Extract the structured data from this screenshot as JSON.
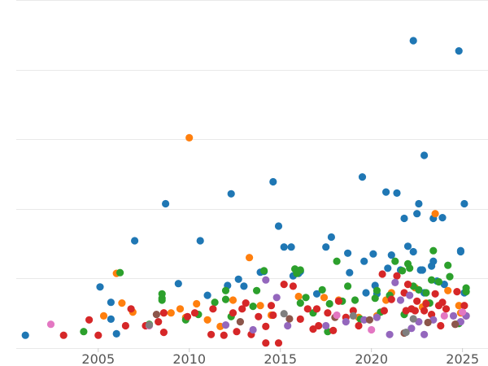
{
  "chart_data": {
    "type": "scatter",
    "title": "",
    "xlabel": "",
    "ylabel": "",
    "xlim": [
      2000.5,
      2026.4
    ],
    "ylim": [
      0,
      95
    ],
    "grid": "horizontal",
    "x_ticks": [
      "2005",
      "2010",
      "2015",
      "2020",
      "2025"
    ],
    "x_tick_values": [
      2005,
      2010,
      2015,
      2020,
      2025
    ],
    "y_grid_values": [
      0,
      19,
      38,
      57,
      76,
      95
    ],
    "series": [
      {
        "color": "#1f77b4",
        "points": [
          [
            2001.0,
            3.5
          ],
          [
            2005.1,
            16.7
          ],
          [
            2005.7,
            12.5
          ],
          [
            2005.7,
            7.9
          ],
          [
            2006.0,
            3.9
          ],
          [
            2007.0,
            29.3
          ],
          [
            2008.7,
            39.4
          ],
          [
            2009.4,
            17.6
          ],
          [
            2010.6,
            29.3
          ],
          [
            2011.0,
            14.4
          ],
          [
            2012.1,
            17.1
          ],
          [
            2012.3,
            42.1
          ],
          [
            2012.7,
            18.8
          ],
          [
            2013.0,
            16.9
          ],
          [
            2013.9,
            20.7
          ],
          [
            2014.1,
            20.9
          ],
          [
            2014.6,
            45.4
          ],
          [
            2014.9,
            33.3
          ],
          [
            2015.2,
            27.6
          ],
          [
            2015.6,
            27.6
          ],
          [
            2015.7,
            19.7
          ],
          [
            2016.0,
            20.4
          ],
          [
            2016.1,
            20.9
          ],
          [
            2017.0,
            14.8
          ],
          [
            2017.5,
            27.6
          ],
          [
            2017.8,
            30.3
          ],
          [
            2018.7,
            25.9
          ],
          [
            2018.8,
            20.6
          ],
          [
            2019.5,
            46.7
          ],
          [
            2019.6,
            23.7
          ],
          [
            2019.7,
            15.1
          ],
          [
            2020.1,
            25.7
          ],
          [
            2020.2,
            17.1
          ],
          [
            2020.3,
            14.8
          ],
          [
            2020.8,
            42.6
          ],
          [
            2020.9,
            21.8
          ],
          [
            2021.1,
            25.4
          ],
          [
            2021.4,
            42.3
          ],
          [
            2021.6,
            21.3
          ],
          [
            2021.8,
            35.4
          ],
          [
            2022.0,
            27.8
          ],
          [
            2022.3,
            26.3
          ],
          [
            2022.3,
            83.9
          ],
          [
            2022.5,
            36.7
          ],
          [
            2022.6,
            39.4
          ],
          [
            2022.7,
            21.3
          ],
          [
            2022.8,
            21.3
          ],
          [
            2022.9,
            15.1
          ],
          [
            2022.9,
            52.6
          ],
          [
            2023.3,
            22.4
          ],
          [
            2023.4,
            35.4
          ],
          [
            2023.4,
            23.7
          ],
          [
            2023.9,
            35.6
          ],
          [
            2024.8,
            81.1
          ],
          [
            2024.9,
            26.3
          ],
          [
            2024.9,
            26.6
          ],
          [
            2025.1,
            39.4
          ],
          [
            2025.1,
            15.1
          ],
          [
            2024.0,
            17.4
          ],
          [
            2023.6,
            18.3
          ]
        ]
      },
      {
        "color": "#ff7f0e",
        "points": [
          [
            2005.3,
            8.8
          ],
          [
            2006.0,
            20.4
          ],
          [
            2006.3,
            12.3
          ],
          [
            2006.9,
            9.8
          ],
          [
            2008.6,
            9.6
          ],
          [
            2009.0,
            9.6
          ],
          [
            2009.5,
            10.7
          ],
          [
            2009.8,
            8.4
          ],
          [
            2010.0,
            57.4
          ],
          [
            2010.4,
            12.1
          ],
          [
            2011.0,
            7.7
          ],
          [
            2011.7,
            5.9
          ],
          [
            2012.4,
            13.1
          ],
          [
            2013.3,
            24.7
          ],
          [
            2013.9,
            11.6
          ],
          [
            2014.5,
            9.0
          ],
          [
            2016.0,
            14.1
          ],
          [
            2017.4,
            13.8
          ],
          [
            2018.2,
            13.1
          ],
          [
            2019.3,
            8.4
          ],
          [
            2020.3,
            8.8
          ],
          [
            2020.8,
            13.1
          ],
          [
            2021.1,
            15.1
          ],
          [
            2022.4,
            16.5
          ],
          [
            2023.0,
            12.3
          ],
          [
            2023.5,
            36.7
          ],
          [
            2024.2,
            15.7
          ],
          [
            2024.8,
            11.6
          ],
          [
            2024.9,
            9.6
          ],
          [
            2022.8,
            11.2
          ]
        ]
      },
      {
        "color": "#2ca02c",
        "points": [
          [
            2004.2,
            4.5
          ],
          [
            2006.2,
            20.6
          ],
          [
            2007.8,
            6.5
          ],
          [
            2008.5,
            14.8
          ],
          [
            2008.5,
            13.6
          ],
          [
            2008.5,
            13.1
          ],
          [
            2009.8,
            7.7
          ],
          [
            2010.5,
            9.2
          ],
          [
            2011.4,
            12.5
          ],
          [
            2012.0,
            13.3
          ],
          [
            2012.0,
            15.7
          ],
          [
            2012.3,
            8.6
          ],
          [
            2013.5,
            11.4
          ],
          [
            2013.7,
            15.7
          ],
          [
            2014.1,
            21.1
          ],
          [
            2015.8,
            21.6
          ],
          [
            2015.9,
            20.4
          ],
          [
            2016.1,
            21.3
          ],
          [
            2016.1,
            12.3
          ],
          [
            2016.4,
            13.8
          ],
          [
            2016.8,
            9.6
          ],
          [
            2017.3,
            15.9
          ],
          [
            2017.7,
            12.1
          ],
          [
            2018.1,
            23.7
          ],
          [
            2018.4,
            12.8
          ],
          [
            2018.7,
            16.9
          ],
          [
            2019.1,
            13.1
          ],
          [
            2019.4,
            7.9
          ],
          [
            2020.2,
            13.6
          ],
          [
            2020.3,
            15.7
          ],
          [
            2020.5,
            9.8
          ],
          [
            2021.0,
            14.4
          ],
          [
            2021.3,
            23.7
          ],
          [
            2021.7,
            21.1
          ],
          [
            2021.8,
            9.2
          ],
          [
            2022.0,
            23.0
          ],
          [
            2022.1,
            21.8
          ],
          [
            2022.3,
            16.9
          ],
          [
            2022.6,
            15.9
          ],
          [
            2023.0,
            15.1
          ],
          [
            2023.2,
            12.3
          ],
          [
            2023.3,
            18.6
          ],
          [
            2023.4,
            26.6
          ],
          [
            2023.7,
            18.1
          ],
          [
            2024.2,
            22.6
          ],
          [
            2024.3,
            19.5
          ],
          [
            2024.8,
            6.7
          ],
          [
            2025.2,
            16.4
          ],
          [
            2025.2,
            15.4
          ],
          [
            2017.6,
            4.5
          ]
        ]
      },
      {
        "color": "#d62728",
        "points": [
          [
            2003.1,
            3.5
          ],
          [
            2004.5,
            7.7
          ],
          [
            2005.0,
            3.5
          ],
          [
            2006.5,
            6.1
          ],
          [
            2006.8,
            10.7
          ],
          [
            2007.6,
            6.1
          ],
          [
            2008.3,
            7.2
          ],
          [
            2008.6,
            9.6
          ],
          [
            2008.6,
            4.3
          ],
          [
            2009.9,
            8.6
          ],
          [
            2010.3,
            9.6
          ],
          [
            2011.2,
            3.7
          ],
          [
            2011.3,
            10.7
          ],
          [
            2011.9,
            3.5
          ],
          [
            2012.4,
            9.6
          ],
          [
            2012.6,
            4.5
          ],
          [
            2012.9,
            10.7
          ],
          [
            2013.1,
            12.3
          ],
          [
            2013.4,
            3.7
          ],
          [
            2013.8,
            8.6
          ],
          [
            2014.2,
            5.9
          ],
          [
            2014.5,
            11.6
          ],
          [
            2014.6,
            9.0
          ],
          [
            2014.9,
            1.4
          ],
          [
            2015.2,
            17.4
          ],
          [
            2015.7,
            16.9
          ],
          [
            2016.1,
            7.9
          ],
          [
            2016.5,
            10.7
          ],
          [
            2016.8,
            5.2
          ],
          [
            2017.0,
            10.7
          ],
          [
            2017.1,
            6.1
          ],
          [
            2017.6,
            9.6
          ],
          [
            2017.9,
            4.8
          ],
          [
            2018.2,
            12.8
          ],
          [
            2018.6,
            8.4
          ],
          [
            2019.0,
            10.2
          ],
          [
            2019.3,
            6.1
          ],
          [
            2020.6,
            20.2
          ],
          [
            2020.7,
            10.2
          ],
          [
            2021.1,
            13.3
          ],
          [
            2021.4,
            19.7
          ],
          [
            2021.8,
            15.1
          ],
          [
            2021.9,
            10.2
          ],
          [
            2022.0,
            17.4
          ],
          [
            2022.2,
            10.7
          ],
          [
            2022.4,
            10.2
          ],
          [
            2022.9,
            10.2
          ],
          [
            2023.0,
            12.1
          ],
          [
            2023.3,
            9.2
          ],
          [
            2023.5,
            14.8
          ],
          [
            2023.7,
            11.6
          ],
          [
            2023.8,
            6.1
          ],
          [
            2024.1,
            10.7
          ],
          [
            2024.7,
            15.4
          ],
          [
            2025.1,
            11.6
          ],
          [
            2025.2,
            8.8
          ],
          [
            2024.6,
            6.5
          ],
          [
            2023.9,
            12.5
          ],
          [
            2014.2,
            1.4
          ],
          [
            2022.5,
            12.8
          ]
        ]
      },
      {
        "color": "#9467bd",
        "points": [
          [
            2013.5,
            5.0
          ],
          [
            2014.2,
            18.6
          ],
          [
            2014.8,
            13.8
          ],
          [
            2015.4,
            6.1
          ],
          [
            2017.5,
            6.1
          ],
          [
            2018.6,
            7.2
          ],
          [
            2019.6,
            7.7
          ],
          [
            2020.3,
            8.4
          ],
          [
            2021.0,
            3.7
          ],
          [
            2021.3,
            17.9
          ],
          [
            2021.6,
            13.1
          ],
          [
            2022.1,
            14.4
          ],
          [
            2022.2,
            5.4
          ],
          [
            2022.6,
            7.2
          ],
          [
            2022.9,
            3.7
          ],
          [
            2023.4,
            7.7
          ],
          [
            2024.5,
            8.8
          ],
          [
            2024.9,
            7.2
          ],
          [
            2025.2,
            8.8
          ],
          [
            2012.0,
            6.3
          ]
        ]
      },
      {
        "color": "#8c564b",
        "points": [
          [
            2008.2,
            9.2
          ],
          [
            2012.8,
            7.2
          ],
          [
            2018.0,
            8.4
          ],
          [
            2019.9,
            7.7
          ],
          [
            2021.8,
            4.1
          ],
          [
            2023.1,
            7.0
          ],
          [
            2024.6,
            6.5
          ],
          [
            2015.5,
            8.0
          ]
        ]
      },
      {
        "color": "#e377c2",
        "points": [
          [
            2002.4,
            6.5
          ],
          [
            2007.8,
            6.1
          ],
          [
            2018.1,
            9.0
          ],
          [
            2020.0,
            5.0
          ],
          [
            2024.0,
            8.8
          ],
          [
            2025.0,
            9.8
          ]
        ]
      },
      {
        "color": "#7f7f7f",
        "points": [
          [
            2007.8,
            6.3
          ],
          [
            2015.2,
            9.4
          ],
          [
            2019.0,
            8.8
          ],
          [
            2021.9,
            4.3
          ],
          [
            2022.3,
            8.0
          ]
        ]
      }
    ]
  }
}
